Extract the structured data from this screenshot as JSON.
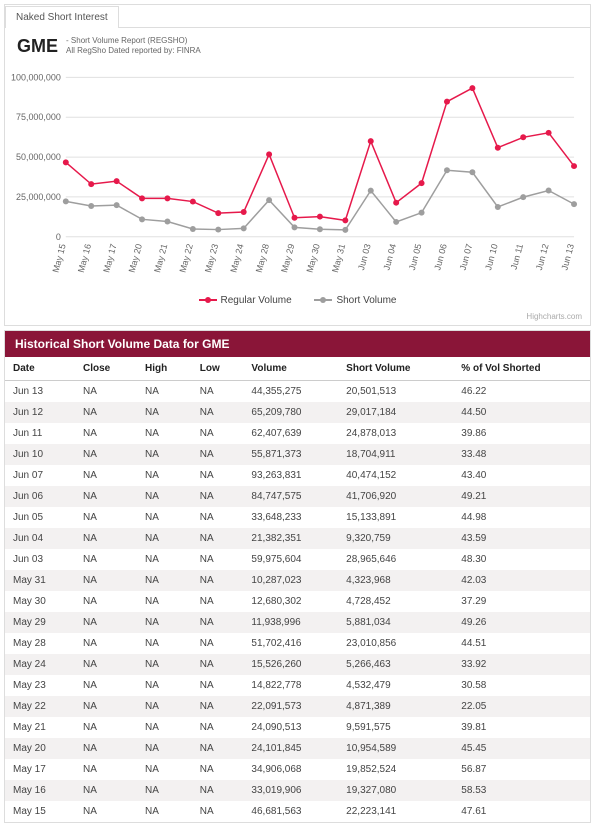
{
  "tab_label": "Naked Short Interest",
  "ticker": "GME",
  "subtitle_line1": "- Short Volume Report (REGSHO)",
  "subtitle_line2": "All RegSho Dated reported by: FINRA",
  "credit": "Highcharts.com",
  "legend": {
    "regular": "Regular Volume",
    "short": "Short Volume"
  },
  "chart": {
    "type": "line",
    "series_colors": {
      "regular": "#e6194b",
      "short": "#9e9e9e"
    },
    "marker_radius": 3,
    "background_color": "#ffffff",
    "grid_color": "#e0e0e0",
    "axis_font_size": 9,
    "y": {
      "min": 0,
      "max": 100000000,
      "ticks": [
        0,
        25000000,
        50000000,
        75000000,
        100000000
      ],
      "tick_labels": [
        "0",
        "25,000,000",
        "50,000,000",
        "75,000,000",
        "100,000,000"
      ]
    },
    "x_labels": [
      "May 15",
      "May 16",
      "May 17",
      "May 20",
      "May 21",
      "May 22",
      "May 23",
      "May 24",
      "May 28",
      "May 29",
      "May 30",
      "May 31",
      "Jun 03",
      "Jun 04",
      "Jun 05",
      "Jun 06",
      "Jun 07",
      "Jun 10",
      "Jun 11",
      "Jun 12",
      "Jun 13"
    ],
    "regular_volume": [
      46681563,
      33019906,
      34906068,
      24101845,
      24090513,
      22091573,
      14822778,
      15526260,
      51702416,
      11938996,
      12680302,
      10287023,
      59975604,
      21382351,
      33648233,
      84747575,
      93263831,
      55871373,
      62407639,
      65209780,
      44355275
    ],
    "short_volume": [
      22223141,
      19327080,
      19852524,
      10954589,
      9591575,
      4871389,
      4532479,
      5266463,
      23010856,
      5881034,
      4728452,
      4323968,
      28965646,
      9320759,
      15133891,
      41706920,
      40474152,
      18704911,
      24878013,
      29017184,
      20501513
    ]
  },
  "table": {
    "title": "Historical Short Volume Data for GME",
    "columns": [
      "Date",
      "Close",
      "High",
      "Low",
      "Volume",
      "Short Volume",
      "% of Vol Shorted"
    ],
    "rows": [
      [
        "Jun 13",
        "NA",
        "NA",
        "NA",
        "44,355,275",
        "20,501,513",
        "46.22"
      ],
      [
        "Jun 12",
        "NA",
        "NA",
        "NA",
        "65,209,780",
        "29,017,184",
        "44.50"
      ],
      [
        "Jun 11",
        "NA",
        "NA",
        "NA",
        "62,407,639",
        "24,878,013",
        "39.86"
      ],
      [
        "Jun 10",
        "NA",
        "NA",
        "NA",
        "55,871,373",
        "18,704,911",
        "33.48"
      ],
      [
        "Jun 07",
        "NA",
        "NA",
        "NA",
        "93,263,831",
        "40,474,152",
        "43.40"
      ],
      [
        "Jun 06",
        "NA",
        "NA",
        "NA",
        "84,747,575",
        "41,706,920",
        "49.21"
      ],
      [
        "Jun 05",
        "NA",
        "NA",
        "NA",
        "33,648,233",
        "15,133,891",
        "44.98"
      ],
      [
        "Jun 04",
        "NA",
        "NA",
        "NA",
        "21,382,351",
        "9,320,759",
        "43.59"
      ],
      [
        "Jun 03",
        "NA",
        "NA",
        "NA",
        "59,975,604",
        "28,965,646",
        "48.30"
      ],
      [
        "May 31",
        "NA",
        "NA",
        "NA",
        "10,287,023",
        "4,323,968",
        "42.03"
      ],
      [
        "May 30",
        "NA",
        "NA",
        "NA",
        "12,680,302",
        "4,728,452",
        "37.29"
      ],
      [
        "May 29",
        "NA",
        "NA",
        "NA",
        "11,938,996",
        "5,881,034",
        "49.26"
      ],
      [
        "May 28",
        "NA",
        "NA",
        "NA",
        "51,702,416",
        "23,010,856",
        "44.51"
      ],
      [
        "May 24",
        "NA",
        "NA",
        "NA",
        "15,526,260",
        "5,266,463",
        "33.92"
      ],
      [
        "May 23",
        "NA",
        "NA",
        "NA",
        "14,822,778",
        "4,532,479",
        "30.58"
      ],
      [
        "May 22",
        "NA",
        "NA",
        "NA",
        "22,091,573",
        "4,871,389",
        "22.05"
      ],
      [
        "May 21",
        "NA",
        "NA",
        "NA",
        "24,090,513",
        "9,591,575",
        "39.81"
      ],
      [
        "May 20",
        "NA",
        "NA",
        "NA",
        "24,101,845",
        "10,954,589",
        "45.45"
      ],
      [
        "May 17",
        "NA",
        "NA",
        "NA",
        "34,906,068",
        "19,852,524",
        "56.87"
      ],
      [
        "May 16",
        "NA",
        "NA",
        "NA",
        "33,019,906",
        "19,327,080",
        "58.53"
      ],
      [
        "May 15",
        "NA",
        "NA",
        "NA",
        "46,681,563",
        "22,223,141",
        "47.61"
      ]
    ]
  }
}
